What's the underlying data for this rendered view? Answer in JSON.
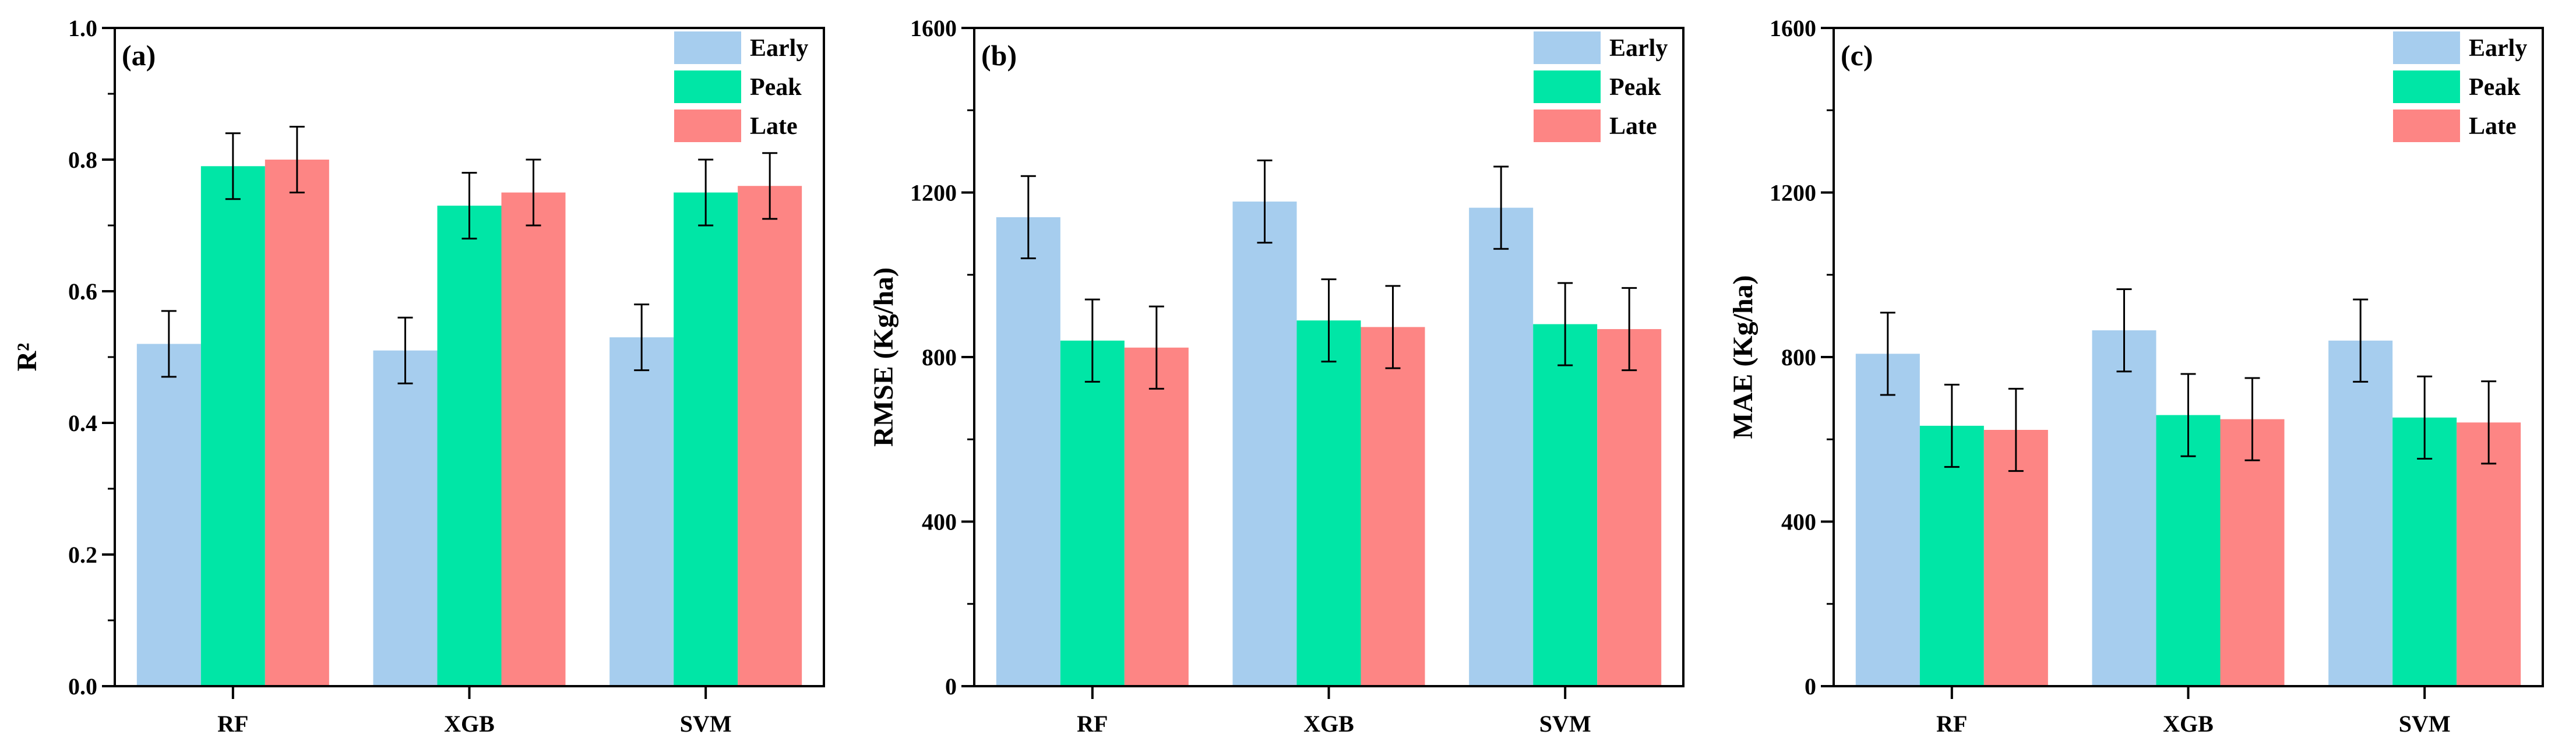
{
  "colors": {
    "Early": "#A6CDEE",
    "Peak": "#00E6A6",
    "Late": "#FD8584",
    "axis": "#000000",
    "errorbar": "#000000"
  },
  "chart_data": [
    {
      "type": "bar",
      "panel_label": "(a)",
      "title": "",
      "xlabel": "",
      "ylabel": "R²",
      "categories": [
        "RF",
        "XGB",
        "SVM"
      ],
      "ylim": [
        0,
        1.0
      ],
      "yticks": [
        "0.0",
        "0.2",
        "0.4",
        "0.6",
        "0.8",
        "1.0"
      ],
      "ytick_values": [
        0,
        0.2,
        0.4,
        0.6,
        0.8,
        1.0
      ],
      "legend": [
        "Early",
        "Peak",
        "Late"
      ],
      "legend_position": "top-right",
      "series": [
        {
          "name": "Early",
          "values": [
            0.52,
            0.51,
            0.53
          ],
          "errors": [
            0.05,
            0.05,
            0.05
          ]
        },
        {
          "name": "Peak",
          "values": [
            0.79,
            0.73,
            0.75
          ],
          "errors": [
            0.05,
            0.05,
            0.05
          ]
        },
        {
          "name": "Late",
          "values": [
            0.8,
            0.75,
            0.76
          ],
          "errors": [
            0.05,
            0.05,
            0.05
          ]
        }
      ]
    },
    {
      "type": "bar",
      "panel_label": "(b)",
      "title": "",
      "xlabel": "",
      "ylabel": "RMSE (Kg/ha)",
      "categories": [
        "RF",
        "XGB",
        "SVM"
      ],
      "ylim": [
        0,
        1600
      ],
      "yticks": [
        "0",
        "400",
        "800",
        "1200",
        "1600"
      ],
      "ytick_values": [
        0,
        400,
        800,
        1200,
        1600
      ],
      "legend": [
        "Early",
        "Peak",
        "Late"
      ],
      "legend_position": "top-right",
      "series": [
        {
          "name": "Early",
          "values": [
            1140,
            1178,
            1163
          ],
          "errors": [
            100,
            100,
            100
          ]
        },
        {
          "name": "Peak",
          "values": [
            840,
            889,
            880
          ],
          "errors": [
            100,
            100,
            100
          ]
        },
        {
          "name": "Late",
          "values": [
            823,
            873,
            868
          ],
          "errors": [
            100,
            100,
            100
          ]
        }
      ]
    },
    {
      "type": "bar",
      "panel_label": "(c)",
      "title": "",
      "xlabel": "",
      "ylabel": "MAE (Kg/ha)",
      "categories": [
        "RF",
        "XGB",
        "SVM"
      ],
      "ylim": [
        0,
        1600
      ],
      "yticks": [
        "0",
        "400",
        "800",
        "1200",
        "1600"
      ],
      "ytick_values": [
        0,
        400,
        800,
        1200,
        1600
      ],
      "legend": [
        "Early",
        "Peak",
        "Late"
      ],
      "legend_position": "top-right",
      "series": [
        {
          "name": "Early",
          "values": [
            808,
            865,
            840
          ],
          "errors": [
            100,
            100,
            100
          ]
        },
        {
          "name": "Peak",
          "values": [
            633,
            659,
            653
          ],
          "errors": [
            100,
            100,
            100
          ]
        },
        {
          "name": "Late",
          "values": [
            623,
            649,
            641
          ],
          "errors": [
            100,
            100,
            100
          ]
        }
      ]
    }
  ]
}
